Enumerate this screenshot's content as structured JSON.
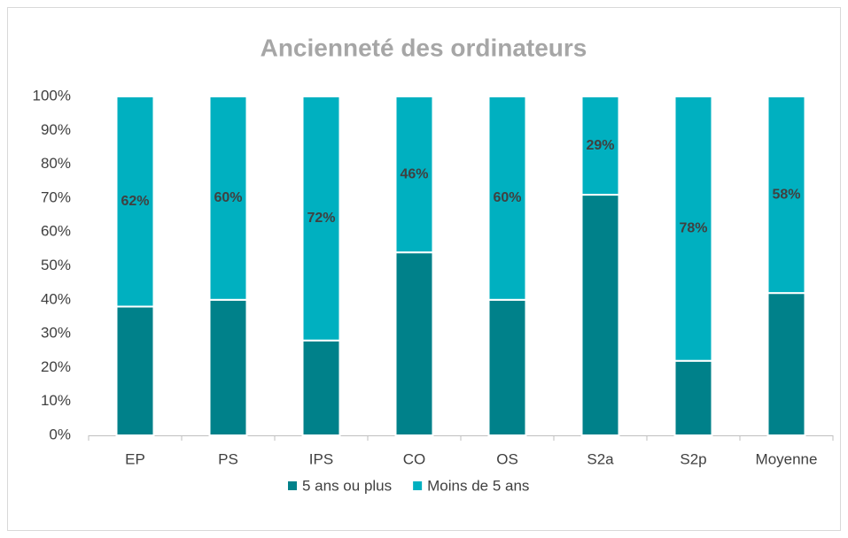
{
  "chart_data": {
    "type": "stacked_bar",
    "title": "Ancienneté des ordinateurs",
    "categories": [
      "EP",
      "PS",
      "IPS",
      "CO",
      "OS",
      "S2a",
      "S2p",
      "Moyenne"
    ],
    "series": [
      {
        "name": "5 ans ou plus",
        "color": "#00818a",
        "values": [
          38,
          40,
          28,
          54,
          40,
          71,
          22,
          42
        ]
      },
      {
        "name": "Moins de 5 ans",
        "color": "#00b0c0",
        "values": [
          62,
          60,
          72,
          46,
          60,
          29,
          78,
          58
        ],
        "value_labels": [
          "62%",
          "60%",
          "72%",
          "46%",
          "60%",
          "29%",
          "78%",
          "58%"
        ]
      }
    ],
    "ylim": [
      0,
      100
    ],
    "yticks": [
      {
        "value": 0,
        "label": "0%"
      },
      {
        "value": 10,
        "label": "10%"
      },
      {
        "value": 20,
        "label": "20%"
      },
      {
        "value": 30,
        "label": "30%"
      },
      {
        "value": 40,
        "label": "40%"
      },
      {
        "value": 50,
        "label": "50%"
      },
      {
        "value": 60,
        "label": "60%"
      },
      {
        "value": 70,
        "label": "70%"
      },
      {
        "value": 80,
        "label": "80%"
      },
      {
        "value": 90,
        "label": "90%"
      },
      {
        "value": 100,
        "label": "100%"
      }
    ],
    "grid": false,
    "legend": "bottom"
  }
}
